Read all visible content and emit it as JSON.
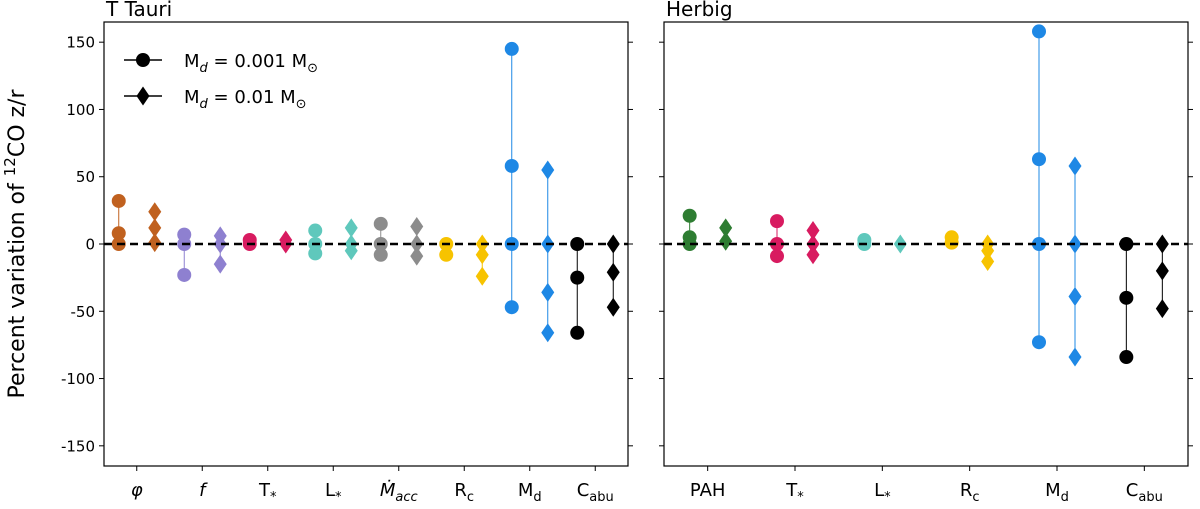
{
  "figure": {
    "ylabel_prefix": "Percent variation of ",
    "ylabel_sup": "12",
    "ylabel_suffix": "CO z/r"
  },
  "legend": [
    {
      "label": "M_d = 0.001 M_sun",
      "label_main": "M",
      "label_sub": "d",
      "label_mid": " = 0.001 M",
      "label_sun": "⊙",
      "marker": "circle"
    },
    {
      "label": "M_d = 0.01 M_sun",
      "label_main": "M",
      "label_sub": "d",
      "label_mid": " = 0.01 M",
      "label_sun": "⊙",
      "marker": "diamond"
    }
  ],
  "chart_data": [
    {
      "type": "scatter",
      "title": "T Tauri",
      "xlabel": "",
      "ylabel": "Percent variation of 12CO z/r",
      "ylim": [
        -165,
        165
      ],
      "yticks": [
        -150,
        -100,
        -50,
        0,
        50,
        100,
        150
      ],
      "reference_line": 0,
      "categories": [
        {
          "label": "φ",
          "main": "φ",
          "sub": "",
          "style": "italic",
          "color": "#c0611f",
          "circle": [
            32,
            8,
            0
          ],
          "diamond": [
            24,
            12,
            1
          ]
        },
        {
          "label": "f",
          "main": "f",
          "sub": "",
          "style": "italic",
          "color": "#8e80d0",
          "circle": [
            7,
            0,
            -23
          ],
          "diamond": [
            6,
            0,
            -15
          ]
        },
        {
          "label": "T*",
          "main": "T",
          "sub": "*",
          "style": "normal",
          "color": "#d81b60",
          "circle": [
            3,
            0
          ],
          "diamond": [
            3,
            0
          ]
        },
        {
          "label": "L*",
          "main": "L",
          "sub": "*",
          "style": "normal",
          "color": "#5fc8bc",
          "circle": [
            10,
            0,
            -7
          ],
          "diamond": [
            12,
            0,
            -5
          ]
        },
        {
          "label": "Ṁacc",
          "main": "Ṁ",
          "sub": "acc",
          "style": "italic",
          "color": "#8c8c8c",
          "circle": [
            15,
            0,
            -8
          ],
          "diamond": [
            13,
            0,
            -9
          ]
        },
        {
          "label": "Rc",
          "main": "R",
          "sub": "c",
          "style": "normal",
          "color": "#f7c300",
          "circle": [
            0,
            -8
          ],
          "diamond": [
            0,
            -8,
            -24
          ]
        },
        {
          "label": "Md",
          "main": "M",
          "sub": "d",
          "style": "normal",
          "color": "#1e88e5",
          "circle": [
            145,
            58,
            0,
            -47
          ],
          "diamond": [
            55,
            0,
            -36,
            -66
          ]
        },
        {
          "label": "Cabu",
          "main": "C",
          "sub": "abu",
          "style": "normal",
          "color": "#000000",
          "circle": [
            0,
            -25,
            -66
          ],
          "diamond": [
            0,
            -21,
            -47
          ]
        }
      ]
    },
    {
      "type": "scatter",
      "title": "Herbig",
      "xlabel": "",
      "ylabel": "",
      "ylim": [
        -165,
        165
      ],
      "yticks": [
        -150,
        -100,
        -50,
        0,
        50,
        100,
        150
      ],
      "reference_line": 0,
      "categories": [
        {
          "label": "PAH",
          "main": "PAH",
          "sub": "",
          "style": "normal",
          "color": "#2e7d32",
          "circle": [
            21,
            5,
            0
          ],
          "diamond": [
            12,
            2
          ]
        },
        {
          "label": "T*",
          "main": "T",
          "sub": "*",
          "style": "normal",
          "color": "#d81b60",
          "circle": [
            17,
            0,
            -9
          ],
          "diamond": [
            10,
            0,
            -8
          ]
        },
        {
          "label": "L*",
          "main": "L",
          "sub": "*",
          "style": "normal",
          "color": "#5fc8bc",
          "circle": [
            3,
            0
          ],
          "diamond": [
            0
          ]
        },
        {
          "label": "Rc",
          "main": "R",
          "sub": "c",
          "style": "normal",
          "color": "#f7c300",
          "circle": [
            5,
            1
          ],
          "diamond": [
            0,
            -5,
            -13
          ]
        },
        {
          "label": "Md",
          "main": "M",
          "sub": "d",
          "style": "normal",
          "color": "#1e88e5",
          "circle": [
            158,
            63,
            0,
            -73
          ],
          "diamond": [
            58,
            0,
            -39,
            -84
          ]
        },
        {
          "label": "Cabu",
          "main": "C",
          "sub": "abu",
          "style": "normal",
          "color": "#000000",
          "circle": [
            0,
            -40,
            -84
          ],
          "diamond": [
            0,
            -20,
            -48
          ]
        }
      ]
    }
  ]
}
